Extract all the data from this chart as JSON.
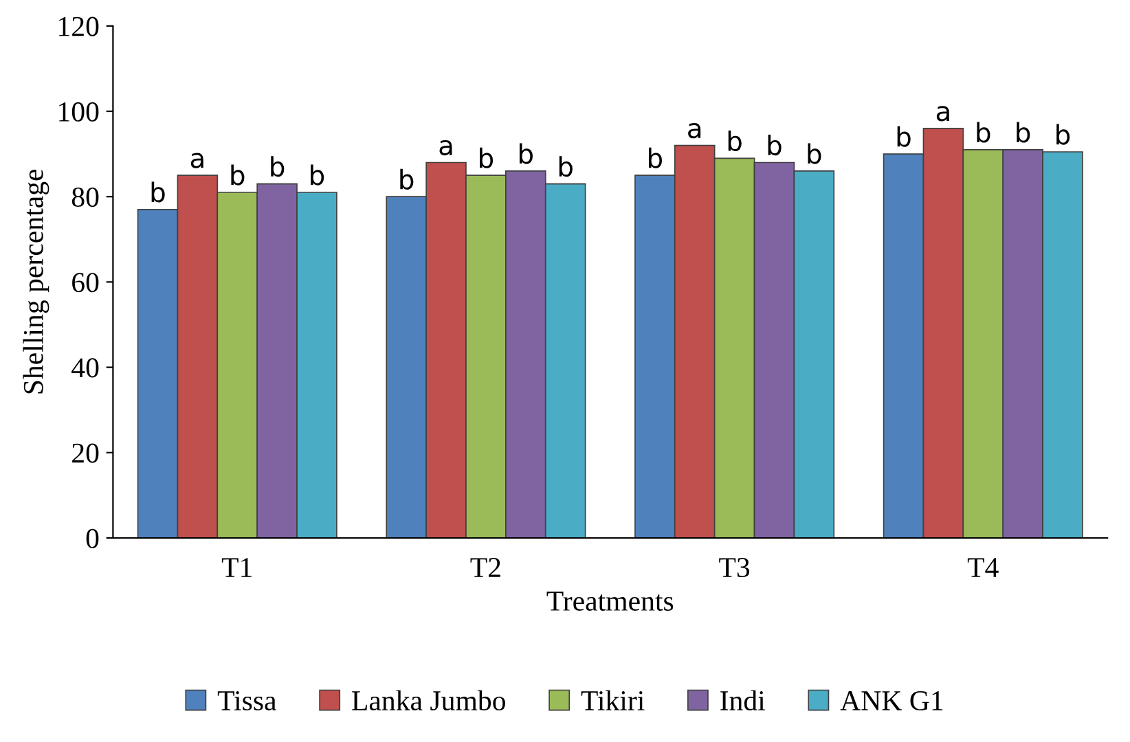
{
  "chart_data": {
    "type": "bar",
    "xlabel": "Treatments",
    "ylabel": "Shelling percentage",
    "categories": [
      "T1",
      "T2",
      "T3",
      "T4"
    ],
    "series": [
      {
        "name": "Tissa",
        "color": "#4f81bd",
        "values": [
          77,
          80,
          85,
          90
        ],
        "value_labels": [
          "b",
          "b",
          "b",
          "b"
        ]
      },
      {
        "name": "Lanka Jumbo",
        "color": "#c0504d",
        "values": [
          85,
          88,
          92,
          96
        ],
        "value_labels": [
          "a",
          "a",
          "a",
          "a"
        ]
      },
      {
        "name": "Tikiri",
        "color": "#9bbb59",
        "values": [
          81,
          85,
          89,
          91
        ],
        "value_labels": [
          "b",
          "b",
          "b",
          "b"
        ]
      },
      {
        "name": "Indi",
        "color": "#8064a2",
        "values": [
          83,
          86,
          88,
          91
        ],
        "value_labels": [
          "b",
          "b",
          "b",
          "b"
        ]
      },
      {
        "name": "ANK G1",
        "color": "#4bacc6",
        "values": [
          81,
          83,
          86,
          90.5
        ],
        "value_labels": [
          "b",
          "b",
          "b",
          "b"
        ]
      }
    ],
    "ylim": [
      0,
      120
    ],
    "yticks": [
      0,
      20,
      40,
      60,
      80,
      100,
      120
    ],
    "grid": false,
    "legend": "bottom"
  }
}
